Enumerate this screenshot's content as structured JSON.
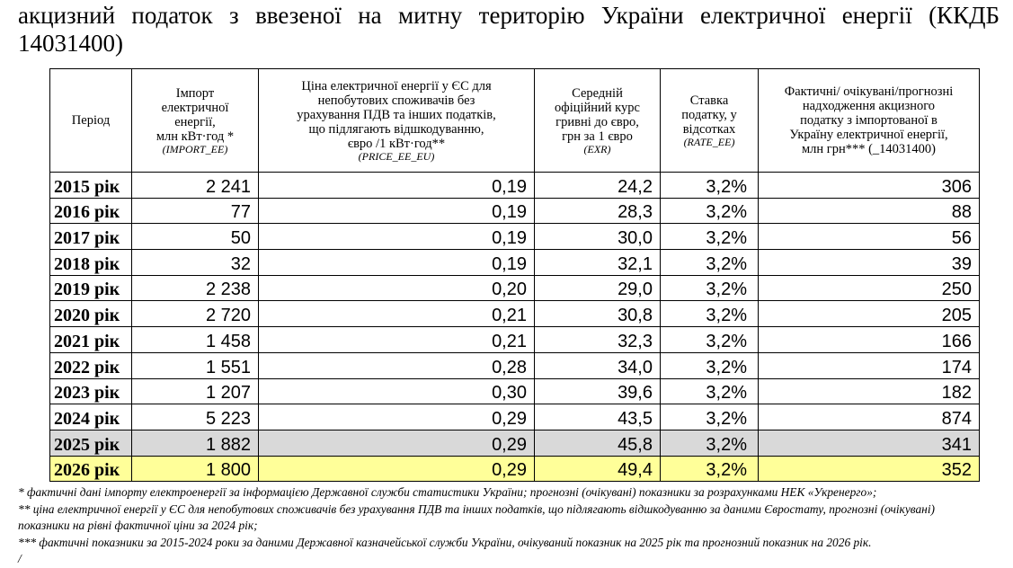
{
  "title": {
    "lines": [
      "акцизний податок з ввезеної на митну територію України електричної енергії (ККДБ",
      "14031400)"
    ]
  },
  "table": {
    "header": [
      {
        "lines": [
          "Період"
        ]
      },
      {
        "lines": [
          "Імпорт",
          "електричної",
          "енергії,",
          "млн кВт·год *"
        ],
        "code": "(IMPORT_EE)"
      },
      {
        "lines": [
          "Ціна електричної енергії у ЄС для",
          "непобутових споживачів без",
          "урахування ПДВ та інших податків,",
          "що підлягають відшкодуванню,",
          "євро /1 кВт·год**"
        ],
        "code": "(PRICE_EE_EU)"
      },
      {
        "lines": [
          "Середній",
          "офіційний курс",
          "гривні до євро,",
          "грн за 1 євро"
        ],
        "code": "(EXR)"
      },
      {
        "lines": [
          "Ставка",
          "податку, у",
          "відсотках"
        ],
        "code": "(RATE_EE)"
      },
      {
        "lines": [
          "Фактичні/ очікувані/прогнозні",
          "надходження акцизного",
          "податку з імпортованої в",
          "Україну електричної енергії,",
          "млн грн*** (_14031400)"
        ]
      }
    ],
    "rows": [
      [
        "2015 рік",
        "2 241",
        "0,19",
        "24,2",
        "3,2%",
        "306"
      ],
      [
        "2016 рік",
        "77",
        "0,19",
        "28,3",
        "3,2%",
        "88"
      ],
      [
        "2017 рік",
        "50",
        "0,19",
        "30,0",
        "3,2%",
        "56"
      ],
      [
        "2018 рік",
        "32",
        "0,19",
        "32,1",
        "3,2%",
        "39"
      ],
      [
        "2019 рік",
        "2 238",
        "0,20",
        "29,0",
        "3,2%",
        "250"
      ],
      [
        "2020 рік",
        "2 720",
        "0,21",
        "30,8",
        "3,2%",
        "205"
      ],
      [
        "2021 рік",
        "1 458",
        "0,21",
        "32,3",
        "3,2%",
        "166"
      ],
      [
        "2022 рік",
        "1 551",
        "0,28",
        "34,0",
        "3,2%",
        "174"
      ],
      [
        "2023 рік",
        "1 207",
        "0,30",
        "39,6",
        "3,2%",
        "182"
      ],
      [
        "2024 рік",
        "5 223",
        "0,29",
        "43,5",
        "3,2%",
        "874"
      ],
      [
        "2025 рік",
        "1 882",
        "0,29",
        "45,8",
        "3,2%",
        "341"
      ],
      [
        "2026 рік",
        "1 800",
        "0,29",
        "49,4",
        "3,2%",
        "352"
      ]
    ]
  },
  "footnotes": [
    "* фактичні дані імпорту електроенергії за інформацією Державної служби статистики України; прогнозні (очікувані) показники за розрахунками НЕК «Укренерго»;",
    "** ціна електричної енергії у ЄС для непобутових споживачів без урахування ПДВ та інших податків, що підлягають відшкодуванню за даними Євростату, прогнозні (очікувані) показники на рівні фактичної ціни за 2024 рік;",
    "*** фактичні показники за 2015-2024 роки за даними Державної казначейської служби України, очікуваний показник на 2025 рік та прогнозний показник на 2026 рік.",
    "/"
  ]
}
